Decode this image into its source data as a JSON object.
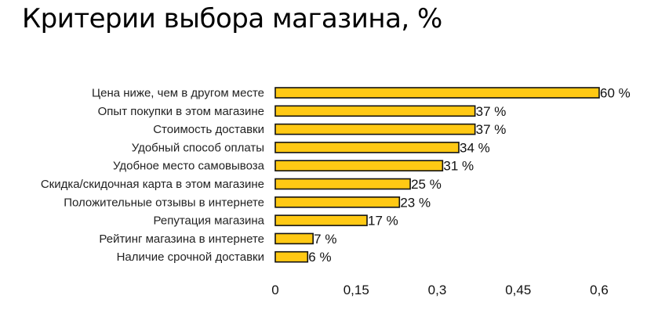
{
  "chart_data": {
    "type": "bar",
    "orientation": "horizontal",
    "title": "Критерии выбора магазина, %",
    "categories": [
      "Цена ниже, чем в другом месте",
      "Опыт покупки в этом магазине",
      "Стоимость доставки",
      "Удобный способ оплаты",
      "Удобное место самовывоза",
      "Скидка/скидочная карта в этом магазине",
      "Положительные отзывы в интернете",
      "Репутация магазина",
      "Рейтинг магазина в интернете",
      "Наличие срочной доставки"
    ],
    "values": [
      0.6,
      0.37,
      0.37,
      0.34,
      0.31,
      0.25,
      0.23,
      0.17,
      0.07,
      0.06
    ],
    "value_labels": [
      "60 %",
      "37 %",
      "37 %",
      "34 %",
      "31 %",
      "25 %",
      "23 %",
      "17 %",
      "7 %",
      "6 %"
    ],
    "xlim": [
      0,
      0.6
    ],
    "xticks": [
      "0",
      "0,15",
      "0,3",
      "0,45",
      "0,6"
    ],
    "xtick_values": [
      0,
      0.15,
      0.3,
      0.45,
      0.6
    ],
    "grid": false,
    "legend": "none",
    "colors": {
      "bar_fill": "#FFC914",
      "bar_stroke": "#111111"
    }
  }
}
